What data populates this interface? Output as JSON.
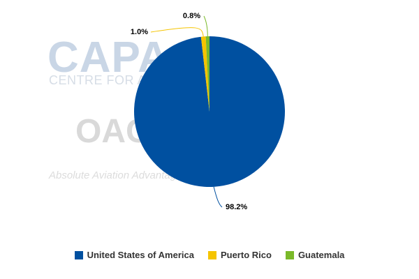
{
  "watermark": {
    "capa_text": "CAPA",
    "capa_subtitle": "CENTRE FOR AVIATION",
    "oag_text": "OAG",
    "oag_tagline": "Absolute Aviation Advantage"
  },
  "chart_data": {
    "type": "pie",
    "title": "",
    "labels": [
      "United States of America",
      "Puerto Rico",
      "Guatemala"
    ],
    "values": [
      98.2,
      1.0,
      0.8
    ],
    "value_labels": [
      "98.2%",
      "1.0%",
      "0.8%"
    ],
    "colors": [
      "#0050a0",
      "#f5c400",
      "#7ab929"
    ],
    "start_angle_deg": 0,
    "direction": "clockwise",
    "legend_position": "bottom",
    "data_labels": "outside-with-leader-lines"
  }
}
